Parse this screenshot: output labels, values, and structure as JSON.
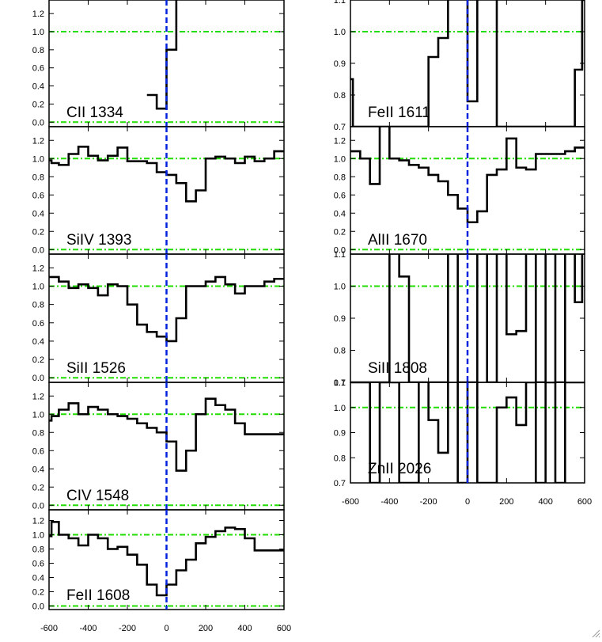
{
  "chart_data": [
    {
      "type": "line",
      "label": "CII 1334",
      "column": "left",
      "ylim": [
        -0.05,
        1.35
      ],
      "yticks": [
        "0.0",
        "0.2",
        "0.4",
        "0.6",
        "0.8",
        "1.0",
        "1.2"
      ],
      "ytick_values": [
        0,
        0.2,
        0.4,
        0.6,
        0.8,
        1.0,
        1.2
      ],
      "x": [
        -600,
        -575,
        -525,
        -475,
        -425,
        -375,
        -325,
        -275,
        -225,
        -175,
        -125,
        -75,
        -25,
        25,
        75,
        125
      ],
      "y": [
        null,
        null,
        null,
        null,
        null,
        null,
        null,
        null,
        null,
        null,
        null,
        0.3,
        0.15,
        0.8,
        1.4,
        1.4
      ]
    },
    {
      "type": "line",
      "label": "SiIV 1393",
      "column": "left",
      "ylim": [
        -0.05,
        1.35
      ],
      "yticks": [
        "0.0",
        "0.2",
        "0.4",
        "0.6",
        "0.8",
        "1.0",
        "1.2"
      ],
      "ytick_values": [
        0,
        0.2,
        0.4,
        0.6,
        0.8,
        1.0,
        1.2
      ],
      "x": [
        -600,
        -575,
        -525,
        -475,
        -425,
        -375,
        -325,
        -275,
        -225,
        -175,
        -125,
        -75,
        -25,
        25,
        75,
        125,
        175,
        225,
        275,
        325,
        375,
        425,
        475,
        525,
        575,
        600
      ],
      "y": [
        0.98,
        0.95,
        0.93,
        1.05,
        1.13,
        1.03,
        0.98,
        1.03,
        1.12,
        0.97,
        0.97,
        0.95,
        0.85,
        0.82,
        0.73,
        0.53,
        0.65,
        1.0,
        1.02,
        1.0,
        0.95,
        1.02,
        0.97,
        1.0,
        1.08,
        1.08
      ]
    },
    {
      "type": "line",
      "label": "SiII 1526",
      "column": "left",
      "ylim": [
        -0.05,
        1.35
      ],
      "yticks": [
        "0.0",
        "0.2",
        "0.4",
        "0.6",
        "0.8",
        "1.0",
        "1.2"
      ],
      "ytick_values": [
        0,
        0.2,
        0.4,
        0.6,
        0.8,
        1.0,
        1.2
      ],
      "x": [
        -600,
        -575,
        -525,
        -475,
        -425,
        -375,
        -325,
        -275,
        -225,
        -175,
        -125,
        -75,
        -25,
        25,
        75,
        125,
        175,
        225,
        275,
        325,
        375,
        425,
        475,
        525,
        575,
        600
      ],
      "y": [
        1.1,
        1.1,
        1.05,
        0.98,
        1.02,
        0.98,
        0.9,
        1.02,
        1.0,
        0.8,
        0.58,
        0.5,
        0.45,
        0.4,
        0.65,
        1.0,
        1.0,
        1.05,
        1.1,
        1.02,
        0.92,
        1.0,
        1.0,
        1.05,
        1.08,
        1.08
      ]
    },
    {
      "type": "line",
      "label": "CIV 1548",
      "column": "left",
      "ylim": [
        -0.05,
        1.35
      ],
      "yticks": [
        "0.0",
        "0.2",
        "0.4",
        "0.6",
        "0.8",
        "1.0",
        "1.2"
      ],
      "ytick_values": [
        0,
        0.2,
        0.4,
        0.6,
        0.8,
        1.0,
        1.2
      ],
      "x": [
        -600,
        -575,
        -525,
        -475,
        -425,
        -375,
        -325,
        -275,
        -225,
        -175,
        -125,
        -75,
        -25,
        25,
        75,
        125,
        175,
        225,
        275,
        325,
        375,
        425,
        475,
        525,
        575,
        600
      ],
      "y": [
        0.93,
        0.98,
        1.05,
        1.12,
        1.0,
        1.08,
        1.05,
        1.0,
        0.98,
        0.95,
        0.9,
        0.85,
        0.8,
        0.7,
        0.38,
        0.6,
        1.0,
        1.17,
        1.1,
        1.05,
        0.9,
        0.78,
        0.78,
        0.78,
        0.78,
        0.78
      ]
    },
    {
      "type": "line",
      "label": "FeII 1608",
      "column": "left",
      "ylim": [
        -0.05,
        1.35
      ],
      "yticks": [
        "0.0",
        "0.2",
        "0.4",
        "0.6",
        "0.8",
        "1.0",
        "1.2"
      ],
      "ytick_values": [
        0,
        0.2,
        0.4,
        0.6,
        0.8,
        1.0,
        1.2
      ],
      "x": [
        -600,
        -575,
        -525,
        -475,
        -425,
        -375,
        -325,
        -275,
        -225,
        -175,
        -125,
        -75,
        -25,
        25,
        75,
        125,
        175,
        225,
        275,
        325,
        375,
        425,
        475,
        525,
        575,
        600
      ],
      "y": [
        0.98,
        1.18,
        1.0,
        0.95,
        0.85,
        1.0,
        0.95,
        0.8,
        0.83,
        0.72,
        0.58,
        0.3,
        0.15,
        0.3,
        0.5,
        0.65,
        0.88,
        0.97,
        1.05,
        1.1,
        1.08,
        0.95,
        0.78,
        0.78,
        0.78,
        0.78
      ]
    },
    {
      "type": "line",
      "label": "FeII 1611",
      "column": "right",
      "ylim": [
        0.7,
        1.1
      ],
      "yticks": [
        "0.7",
        "0.8",
        "0.9",
        "1.0",
        "1.1"
      ],
      "ytick_values": [
        0.7,
        0.8,
        0.9,
        1.0,
        1.1
      ],
      "x": [
        -600,
        -575,
        -525,
        -475,
        -425,
        -375,
        -325,
        -275,
        -225,
        -175,
        -125,
        -75,
        -25,
        25,
        75,
        125,
        175,
        225,
        275,
        325,
        375,
        425,
        475,
        525,
        575,
        600
      ],
      "y": [
        0.85,
        0.7,
        0.7,
        0.7,
        0.7,
        0.7,
        0.7,
        0.7,
        0.7,
        0.92,
        0.98,
        1.15,
        1.15,
        0.78,
        1.15,
        1.15,
        0.7,
        0.7,
        0.7,
        0.7,
        0.7,
        0.7,
        0.7,
        0.7,
        0.88,
        1.1
      ]
    },
    {
      "type": "line",
      "label": "AlII 1670",
      "column": "right",
      "ylim": [
        -0.05,
        1.35
      ],
      "yticks": [
        "0.0",
        "0.2",
        "0.4",
        "0.6",
        "0.8",
        "1.0",
        "1.2"
      ],
      "ytick_values": [
        0,
        0.2,
        0.4,
        0.6,
        0.8,
        1.0,
        1.2
      ],
      "x": [
        -600,
        -575,
        -525,
        -475,
        -425,
        -375,
        -325,
        -275,
        -225,
        -175,
        -125,
        -75,
        -25,
        25,
        75,
        125,
        175,
        225,
        275,
        325,
        375,
        425,
        475,
        525,
        575,
        600
      ],
      "y": [
        1.08,
        1.08,
        1.0,
        0.72,
        1.4,
        1.0,
        0.98,
        0.93,
        0.9,
        0.82,
        0.75,
        0.6,
        0.45,
        0.3,
        0.42,
        0.82,
        0.88,
        1.22,
        0.9,
        0.88,
        1.05,
        1.05,
        1.05,
        1.08,
        1.12,
        1.12
      ]
    },
    {
      "type": "line",
      "label": "SiII 1808",
      "column": "right",
      "ylim": [
        0.7,
        1.1
      ],
      "yticks": [
        "0.7",
        "0.8",
        "0.9",
        "1.0",
        "1.1"
      ],
      "ytick_values": [
        0.7,
        0.8,
        0.9,
        1.0,
        1.1
      ],
      "x": [
        -600,
        -575,
        -525,
        -475,
        -425,
        -375,
        -325,
        -275,
        -225,
        -175,
        -125,
        -75,
        -25,
        25,
        75,
        125,
        175,
        225,
        275,
        325,
        375,
        425,
        475,
        525,
        575,
        600
      ],
      "y": [
        0.7,
        0.7,
        0.7,
        0.7,
        0.7,
        1.15,
        1.03,
        0.7,
        0.7,
        0.7,
        0.7,
        1.15,
        0.7,
        0.7,
        1.15,
        0.7,
        1.15,
        0.85,
        0.86,
        1.15,
        0.7,
        1.15,
        0.7,
        1.15,
        0.95,
        1.15
      ]
    },
    {
      "type": "line",
      "label": "ZnII 2026",
      "column": "right",
      "ylim": [
        0.7,
        1.1
      ],
      "yticks": [
        "0.7",
        "0.8",
        "0.9",
        "1.0",
        "1.1"
      ],
      "ytick_values": [
        0.7,
        0.8,
        0.9,
        1.0,
        1.1
      ],
      "x": [
        -600,
        -575,
        -525,
        -475,
        -425,
        -375,
        -325,
        -275,
        -225,
        -175,
        -125,
        -75,
        -25,
        25,
        75,
        125,
        175,
        225,
        275,
        325,
        375,
        425,
        475,
        525,
        575,
        600
      ],
      "y": [
        1.1,
        1.1,
        1.1,
        0.7,
        1.1,
        1.1,
        0.7,
        0.7,
        1.15,
        0.95,
        0.82,
        1.15,
        0.7,
        1.15,
        0.7,
        0.7,
        1.0,
        1.04,
        0.93,
        1.1,
        0.7,
        1.1,
        0.7,
        1.1,
        1.1,
        1.1
      ]
    }
  ],
  "x_axis": {
    "xlim": [
      -600,
      600
    ],
    "xticks": [
      "-600",
      "-400",
      "-200",
      "0",
      "200",
      "400",
      "600"
    ],
    "xtick_values": [
      -600,
      -400,
      -200,
      0,
      200,
      400,
      600
    ]
  },
  "reference_lines": {
    "continuum_y": 1.0,
    "zero_y": 0.0,
    "velocity_zero": 0
  },
  "colors": {
    "data": "#000000",
    "continuum": "#22dd00",
    "velocity_zero": "#0022dd",
    "frame": "#000000"
  }
}
